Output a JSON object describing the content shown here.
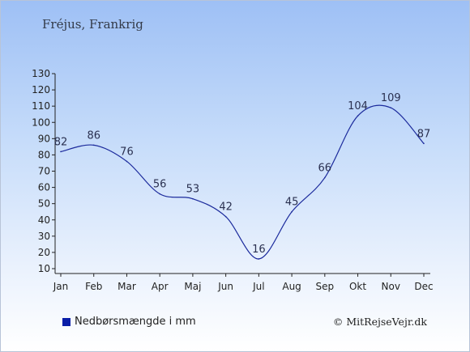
{
  "header": {
    "title": "Fréjus, Frankrig"
  },
  "legend": {
    "label": "Nedbørsmængde i mm",
    "color": "#0a1ea8"
  },
  "credit": {
    "text": "© MitRejseVejr.dk"
  },
  "colors": {
    "line": "#1b2a9c",
    "axis": "#222222",
    "label": "#2a3050"
  },
  "chart_data": {
    "type": "line",
    "categories": [
      "Jan",
      "Feb",
      "Mar",
      "Apr",
      "Maj",
      "Jun",
      "Jul",
      "Aug",
      "Sep",
      "Okt",
      "Nov",
      "Dec"
    ],
    "series": [
      {
        "name": "Nedbørsmængde i mm",
        "values": [
          82,
          86,
          76,
          56,
          53,
          42,
          16,
          45,
          66,
          104,
          109,
          87
        ]
      }
    ],
    "data_labels": [
      "82",
      "86",
      "76",
      "56",
      "53",
      "42",
      "16",
      "45",
      "66",
      "104",
      "109",
      "87"
    ],
    "yticks": [
      10,
      20,
      30,
      40,
      50,
      60,
      70,
      80,
      90,
      100,
      110,
      120,
      130
    ],
    "ylim": [
      10,
      130
    ],
    "grid": false,
    "legend_position": "bottom-left"
  }
}
